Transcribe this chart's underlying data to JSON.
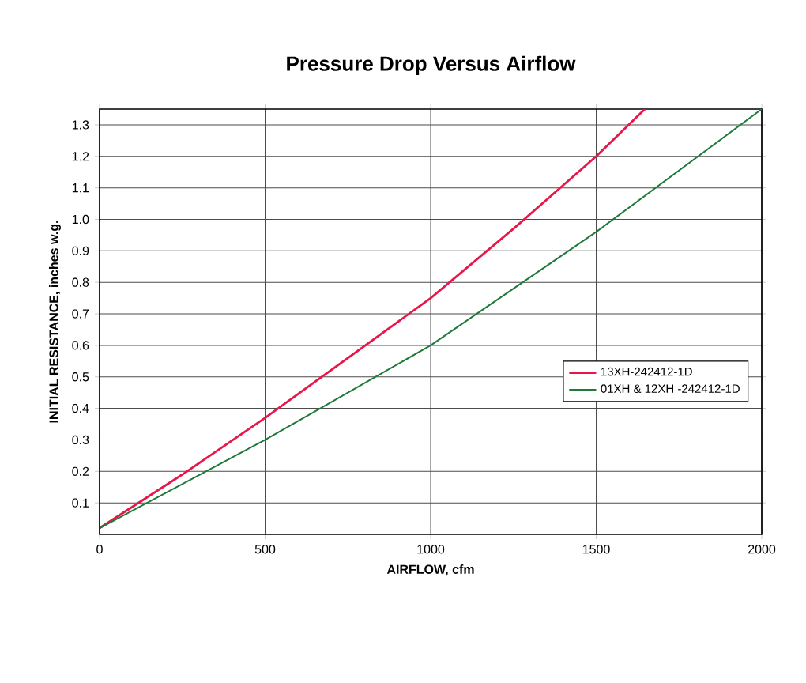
{
  "chart_data": {
    "type": "line",
    "title": "Pressure Drop Versus Airflow",
    "xlabel": "AIRFLOW, cfm",
    "ylabel": "INITIAL RESISTANCE, inches w.g.",
    "xlim": [
      0,
      2000
    ],
    "ylim": [
      0,
      1.35
    ],
    "xticks": [
      0,
      500,
      1000,
      1500,
      2000
    ],
    "yticks": [
      0.1,
      0.2,
      0.3,
      0.4,
      0.5,
      0.6,
      0.7,
      0.8,
      0.9,
      {
        "value": 1.0,
        "label": "1.0"
      },
      1.1,
      1.2,
      1.3
    ],
    "grid": true,
    "legend": "right",
    "marker": "none",
    "line_style": "solid",
    "series": [
      {
        "name": "13XH-242412-1D",
        "color": "#e8174a",
        "x": [
          0,
          250,
          500,
          750,
          1000,
          1250,
          1500,
          1647
        ],
        "values": [
          0.02,
          0.19,
          0.37,
          0.56,
          0.75,
          0.97,
          1.2,
          1.35
        ]
      },
      {
        "name": "01XH & 12XH -242412-1D",
        "color": "#1f7a3a",
        "x": [
          0,
          500,
          1000,
          1500,
          2000
        ],
        "values": [
          0.02,
          0.3,
          0.6,
          0.96,
          1.35
        ]
      }
    ]
  }
}
